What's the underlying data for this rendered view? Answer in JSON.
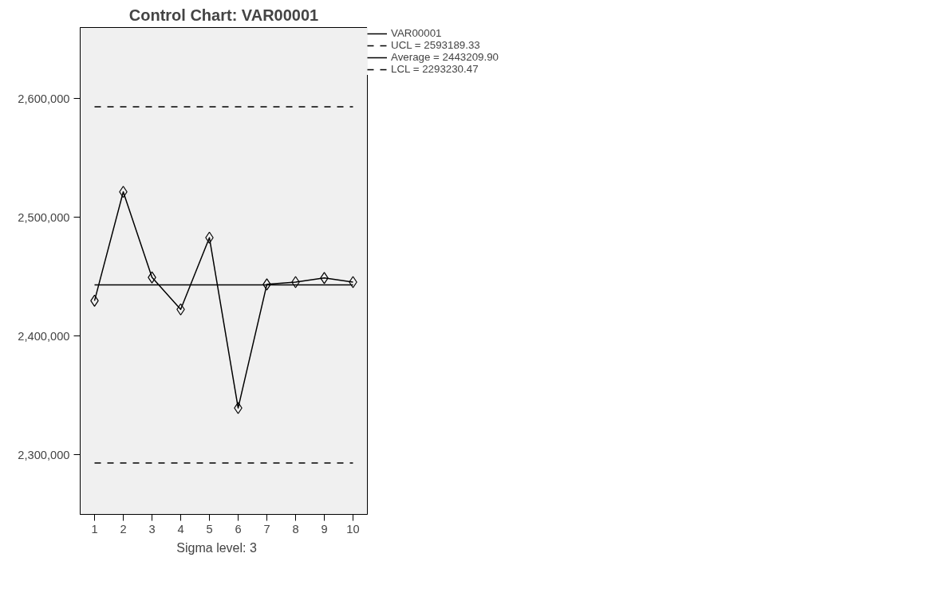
{
  "chart_data": {
    "type": "line",
    "title": "Control Chart: VAR00001",
    "x": [
      1,
      2,
      3,
      4,
      5,
      6,
      7,
      8,
      9,
      10
    ],
    "series": [
      {
        "name": "VAR00001",
        "color": "#000000",
        "values": [
          2429900,
          2521600,
          2449600,
          2422600,
          2483000,
          2339600,
          2443700,
          2445600,
          2449100,
          2445600
        ]
      }
    ],
    "ref_lines": [
      {
        "axis": "y",
        "value": 2593189.33,
        "label": "UCL = 2593189.33",
        "color": "#000000",
        "line_style": "dashed"
      },
      {
        "axis": "y",
        "value": 2443209.9,
        "label": "Average = 2443209.90",
        "color": "#000000",
        "line_style": "solid"
      },
      {
        "axis": "y",
        "value": 2293230.47,
        "label": "LCL = 2293230.47",
        "color": "#000000",
        "line_style": "dashed"
      }
    ],
    "annotations": [
      "Sigma level:     3"
    ],
    "xlim": [
      0.5,
      10.5
    ],
    "ylim": [
      2250000,
      2660000
    ],
    "xticks": [
      1,
      2,
      3,
      4,
      5,
      6,
      7,
      8,
      9,
      10
    ],
    "yticks": [
      {
        "value": 2300000,
        "label": "2,300,000"
      },
      {
        "value": 2400000,
        "label": "2,400,000"
      },
      {
        "value": 2500000,
        "label": "2,500,000"
      },
      {
        "value": 2600000,
        "label": "2,600,000"
      }
    ],
    "marker": "diamond",
    "line_style": "solid",
    "grid": false,
    "legend": "top right"
  }
}
